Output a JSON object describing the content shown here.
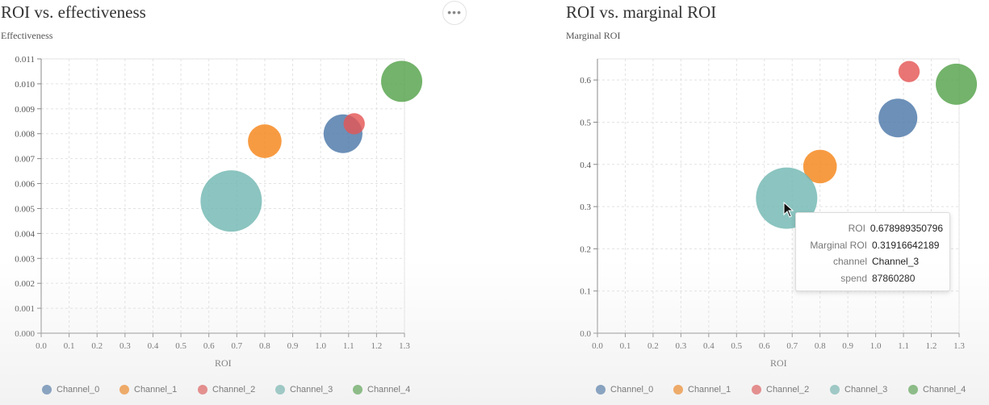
{
  "colors": {
    "Channel_0": "#4c78a8",
    "Channel_1": "#f58518",
    "Channel_2": "#e45756",
    "Channel_3": "#72b7b2",
    "Channel_4": "#54a24b"
  },
  "menu": {
    "icon": "ellipsis-icon",
    "label": "•••"
  },
  "legend": [
    "Channel_0",
    "Channel_1",
    "Channel_2",
    "Channel_3",
    "Channel_4"
  ],
  "tooltip": {
    "rows": [
      {
        "key": "ROI",
        "value": "0.678989350796"
      },
      {
        "key": "Marginal ROI",
        "value": "0.31916642189"
      },
      {
        "key": "channel",
        "value": "Channel_3"
      },
      {
        "key": "spend",
        "value": "87860280"
      }
    ]
  },
  "chart_data": [
    {
      "type": "scatter",
      "title": "ROI vs. effectiveness",
      "xlabel": "ROI",
      "ylabel": "Effectiveness",
      "xlim": [
        0,
        1.3
      ],
      "ylim": [
        0,
        0.011
      ],
      "x_ticks": [
        "0.0",
        "0.1",
        "0.2",
        "0.3",
        "0.4",
        "0.5",
        "0.6",
        "0.7",
        "0.8",
        "0.9",
        "1.0",
        "1.1",
        "1.2",
        "1.3"
      ],
      "y_ticks": [
        "0.000",
        "0.001",
        "0.002",
        "0.003",
        "0.004",
        "0.005",
        "0.006",
        "0.007",
        "0.008",
        "0.009",
        "0.010",
        "0.011"
      ],
      "grid": true,
      "legend_position": "bottom",
      "series": [
        {
          "name": "Channel_0",
          "x": 1.08,
          "y": 0.008,
          "size": 0.4
        },
        {
          "name": "Channel_1",
          "x": 0.8,
          "y": 0.0077,
          "size": 0.3
        },
        {
          "name": "Channel_2",
          "x": 1.12,
          "y": 0.0084,
          "size": 0.12
        },
        {
          "name": "Channel_3",
          "x": 0.68,
          "y": 0.0053,
          "size": 1.0
        },
        {
          "name": "Channel_4",
          "x": 1.29,
          "y": 0.0101,
          "size": 0.45
        }
      ]
    },
    {
      "type": "scatter",
      "title": "ROI vs. marginal ROI",
      "xlabel": "ROI",
      "ylabel": "Marginal ROI",
      "xlim": [
        0,
        1.3
      ],
      "ylim": [
        0,
        0.65
      ],
      "x_ticks": [
        "0.0",
        "0.1",
        "0.2",
        "0.3",
        "0.4",
        "0.5",
        "0.6",
        "0.7",
        "0.8",
        "0.9",
        "1.0",
        "1.1",
        "1.2",
        "1.3"
      ],
      "y_ticks": [
        "0.0",
        "0.1",
        "0.2",
        "0.3",
        "0.4",
        "0.5",
        "0.6"
      ],
      "grid": true,
      "legend_position": "bottom",
      "series": [
        {
          "name": "Channel_0",
          "x": 1.08,
          "y": 0.51,
          "size": 0.4
        },
        {
          "name": "Channel_1",
          "x": 0.8,
          "y": 0.395,
          "size": 0.3
        },
        {
          "name": "Channel_2",
          "x": 1.12,
          "y": 0.62,
          "size": 0.12
        },
        {
          "name": "Channel_3",
          "x": 0.68,
          "y": 0.32,
          "size": 1.0
        },
        {
          "name": "Channel_4",
          "x": 1.29,
          "y": 0.59,
          "size": 0.45
        }
      ]
    }
  ]
}
